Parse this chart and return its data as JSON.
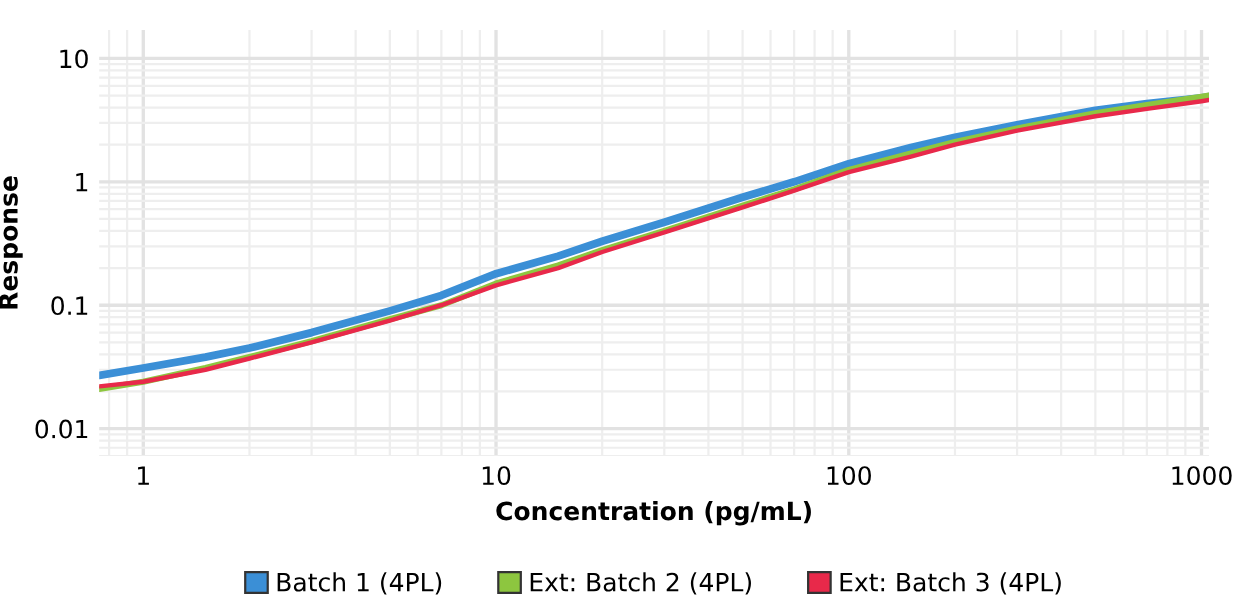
{
  "chart_data": {
    "type": "line",
    "xlabel": "Concentration (pg/mL)",
    "ylabel": "Response",
    "log": "xy",
    "grid": true,
    "legend": "bottom",
    "marker": "none",
    "line_style": "solid",
    "xlim": [
      0.75,
      1050
    ],
    "ylim": [
      0.006,
      17
    ],
    "xticks": [
      1,
      10,
      100,
      1000
    ],
    "yticks": [
      0.01,
      0.1,
      1,
      10
    ],
    "x": [
      0.75,
      1,
      1.5,
      2,
      3,
      5,
      7,
      10,
      15,
      20,
      30,
      50,
      70,
      100,
      150,
      200,
      300,
      500,
      700,
      1000,
      1050
    ],
    "series": [
      {
        "name": "Batch 1 (4PL)",
        "color": "#3b8fd6",
        "values": [
          0.027,
          0.031,
          0.038,
          0.045,
          0.06,
          0.09,
          0.12,
          0.18,
          0.25,
          0.33,
          0.47,
          0.75,
          1.0,
          1.4,
          1.9,
          2.3,
          2.9,
          3.8,
          4.3,
          4.8,
          4.9
        ]
      },
      {
        "name": "Ext: Batch 2 (4PL)",
        "color": "#8dc63f",
        "values": [
          0.021,
          0.024,
          0.031,
          0.038,
          0.051,
          0.077,
          0.1,
          0.15,
          0.21,
          0.28,
          0.4,
          0.64,
          0.87,
          1.25,
          1.7,
          2.1,
          2.7,
          3.6,
          4.2,
          4.9,
          5.0
        ]
      },
      {
        "name": "Ext: Batch 3 (4PL)",
        "color": "#e8294a",
        "values": [
          0.022,
          0.024,
          0.03,
          0.037,
          0.05,
          0.075,
          0.1,
          0.145,
          0.2,
          0.27,
          0.39,
          0.62,
          0.85,
          1.2,
          1.6,
          2.0,
          2.6,
          3.4,
          3.9,
          4.5,
          4.6
        ]
      }
    ]
  }
}
